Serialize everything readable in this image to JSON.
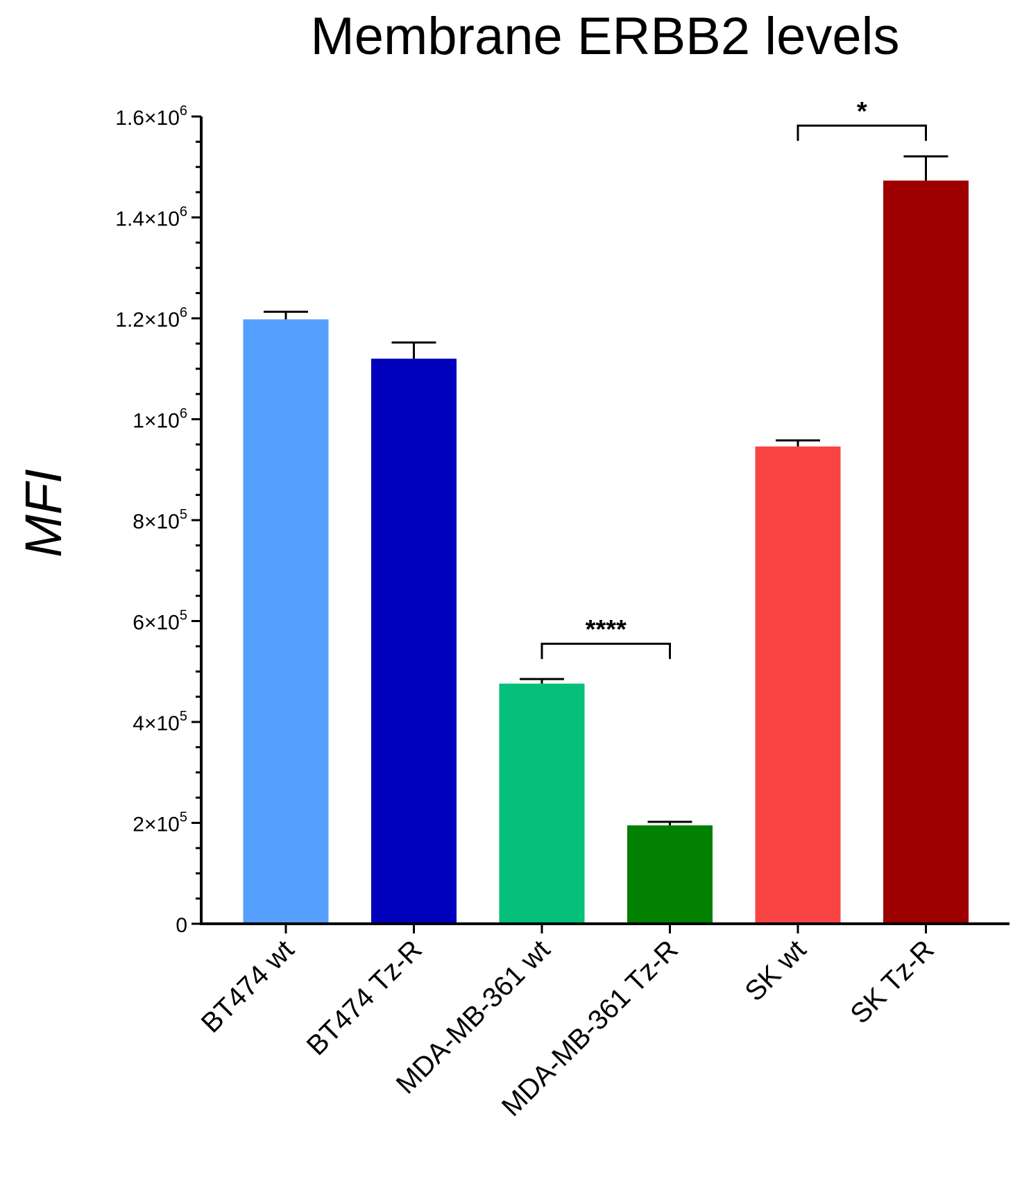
{
  "chart_data": {
    "type": "bar",
    "title": "Membrane ERBB2 levels",
    "xlabel": "",
    "ylabel": "MFI",
    "ylim": [
      0,
      1600000
    ],
    "grid": false,
    "categories": [
      "BT474 wt",
      "BT474 Tz-R",
      "MDA-MB-361 wt",
      "MDA-MB-361 Tz-R",
      "SK wt",
      "SK Tz-R"
    ],
    "values": [
      1198000,
      1120000,
      476000,
      195000,
      946000,
      1473000
    ],
    "errors": [
      15000,
      32000,
      9000,
      7000,
      12000,
      48000
    ],
    "colors": [
      "#55a0ff",
      "#0000bd",
      "#05c07a",
      "#018002",
      "#f94444",
      "#9e0000"
    ],
    "yticks": [
      {
        "value": 0,
        "mant": "0",
        "exp": ""
      },
      {
        "value": 200000,
        "mant": "2×10",
        "exp": "5"
      },
      {
        "value": 400000,
        "mant": "4×10",
        "exp": "5"
      },
      {
        "value": 600000,
        "mant": "6×10",
        "exp": "5"
      },
      {
        "value": 800000,
        "mant": "8×10",
        "exp": "5"
      },
      {
        "value": 1000000,
        "mant": "1×10",
        "exp": "6"
      },
      {
        "value": 1200000,
        "mant": "1.2×10",
        "exp": "6"
      },
      {
        "value": 1400000,
        "mant": "1.4×10",
        "exp": "6"
      },
      {
        "value": 1600000,
        "mant": "1.6×10",
        "exp": "6"
      }
    ],
    "significance": [
      {
        "from": 2,
        "to": 3,
        "label": "****",
        "level": 555000
      },
      {
        "from": 4,
        "to": 5,
        "label": "*",
        "level": 1582000
      }
    ]
  }
}
